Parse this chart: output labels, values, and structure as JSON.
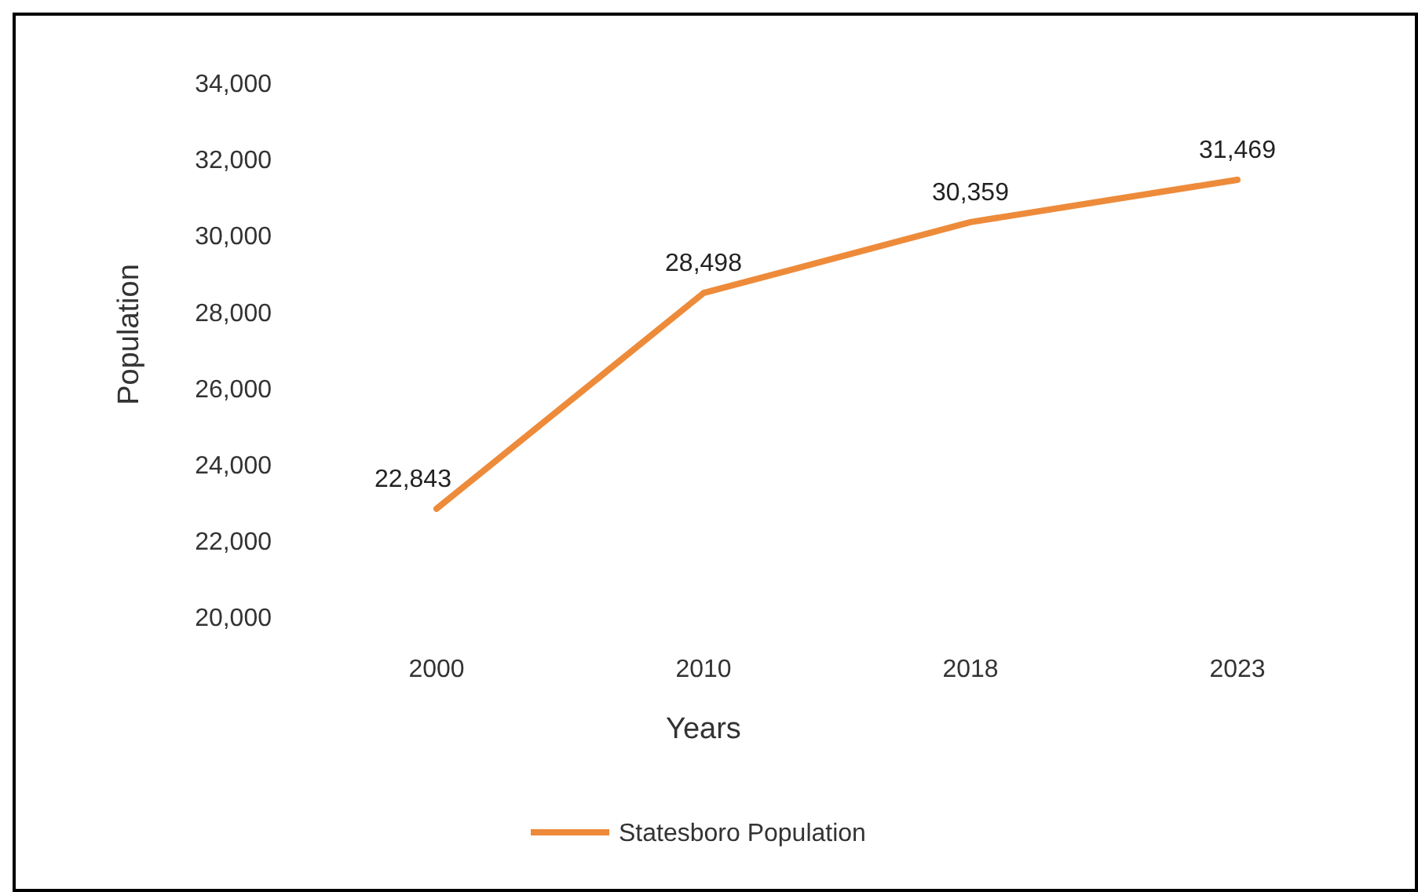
{
  "chart_data": {
    "type": "line",
    "xlabel": "Years",
    "ylabel": "Population",
    "categories": [
      "2000",
      "2010",
      "2018",
      "2023"
    ],
    "series": [
      {
        "name": "Statesboro Population",
        "color": "#ed8b3a",
        "values": [
          22843,
          28498,
          30359,
          31469
        ],
        "value_labels": [
          "22,843",
          "28,498",
          "30,359",
          "31,469"
        ]
      }
    ],
    "ylim": [
      20000,
      34000
    ],
    "yticks": [
      {
        "value": 20000,
        "label": "20,000"
      },
      {
        "value": 22000,
        "label": "22,000"
      },
      {
        "value": 24000,
        "label": "24,000"
      },
      {
        "value": 26000,
        "label": "26,000"
      },
      {
        "value": 28000,
        "label": "28,000"
      },
      {
        "value": 30000,
        "label": "30,000"
      },
      {
        "value": 32000,
        "label": "32,000"
      },
      {
        "value": 34000,
        "label": "34,000"
      }
    ],
    "grid": false,
    "legend": "bottom",
    "marker": "none",
    "line_style": "solid"
  }
}
